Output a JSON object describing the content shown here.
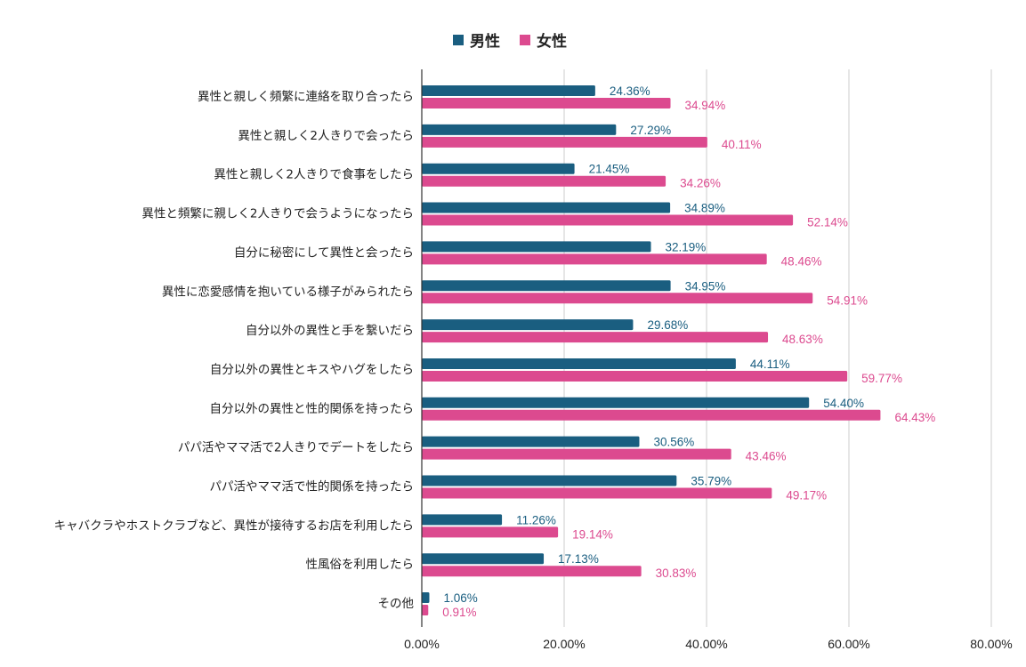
{
  "chart_data": {
    "type": "bar",
    "orientation": "horizontal",
    "title": "",
    "xlabel": "",
    "ylabel": "",
    "xlim": [
      0,
      80
    ],
    "x_ticks": [
      "0.00%",
      "20.00%",
      "40.00%",
      "60.00%",
      "80.00%"
    ],
    "x_tick_values": [
      0,
      20,
      40,
      60,
      80
    ],
    "grid": true,
    "legend_position": "top-center",
    "categories": [
      "異性と親しく頻繁に連絡を取り合ったら",
      "異性と親しく2人きりで会ったら",
      "異性と親しく2人きりで食事をしたら",
      "異性と頻繁に親しく2人きりで会うようになったら",
      "自分に秘密にして異性と会ったら",
      "異性に恋愛感情を抱いている様子がみられたら",
      "自分以外の異性と手を繋いだら",
      "自分以外の異性とキスやハグをしたら",
      "自分以外の異性と性的関係を持ったら",
      "パパ活やママ活で2人きりでデートをしたら",
      "パパ活やママ活で性的関係を持ったら",
      "キャバクラやホストクラブなど、異性が接待するお店を利用したら",
      "性風俗を利用したら",
      "その他"
    ],
    "series": [
      {
        "name": "男性",
        "color": "#1a5e80",
        "values": [
          24.36,
          27.29,
          21.45,
          34.89,
          32.19,
          34.95,
          29.68,
          44.11,
          54.4,
          30.56,
          35.79,
          11.26,
          17.13,
          1.06
        ],
        "labels": [
          "24.36%",
          "27.29%",
          "21.45%",
          "34.89%",
          "32.19%",
          "34.95%",
          "29.68%",
          "44.11%",
          "54.40%",
          "30.56%",
          "35.79%",
          "11.26%",
          "17.13%",
          "1.06%"
        ]
      },
      {
        "name": "女性",
        "color": "#dc4a8f",
        "values": [
          34.94,
          40.11,
          34.26,
          52.14,
          48.46,
          54.91,
          48.63,
          59.77,
          64.43,
          43.46,
          49.17,
          19.14,
          30.83,
          0.91
        ],
        "labels": [
          "34.94%",
          "40.11%",
          "34.26%",
          "52.14%",
          "48.46%",
          "54.91%",
          "48.63%",
          "59.77%",
          "64.43%",
          "43.46%",
          "49.17%",
          "19.14%",
          "30.83%",
          "0.91%"
        ]
      }
    ]
  }
}
